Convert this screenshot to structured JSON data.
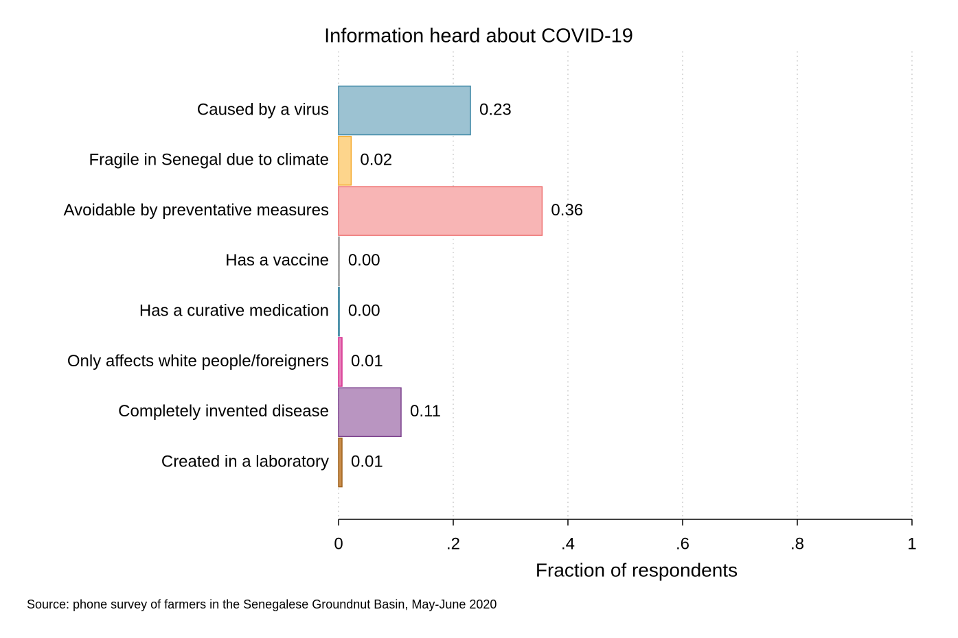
{
  "chart_data": {
    "type": "hbar",
    "title": "Information heard about COVID-19",
    "categories": [
      "Caused by a virus",
      "Fragile in Senegal due to climate",
      "Avoidable by preventative measures",
      "Has a vaccine",
      "Has a curative medication",
      "Only affects white people/foreigners",
      "Completely invented disease",
      "Created in a laboratory"
    ],
    "values": [
      0.23,
      0.022,
      0.355,
      0.001,
      0.001,
      0.006,
      0.109,
      0.006
    ],
    "value_labels": [
      "0.23",
      "0.02",
      "0.36",
      "0.00",
      "0.00",
      "0.01",
      "0.11",
      "0.01"
    ],
    "colors": [
      "#9cc2d2",
      "#fdd58c",
      "#f8b5b5",
      "#c8c8c8",
      "#8fc3d3",
      "#e77fb9",
      "#b995c1",
      "#c98d4a"
    ],
    "edge_colors": [
      "#3f88a6",
      "#f4a92a",
      "#ee7070",
      "#999999",
      "#2f7f9b",
      "#d6308f",
      "#7c418d",
      "#a0631f"
    ],
    "xlim": [
      0,
      1
    ],
    "xticks": [
      0,
      {
        "value": 0.2,
        "label": ".2"
      },
      {
        "value": 0.4,
        "label": ".4"
      },
      {
        "value": 0.6,
        "label": ".6"
      },
      {
        "value": 0.8,
        "label": ".8"
      },
      1
    ],
    "xlabel": "Fraction of respondents",
    "grid": true,
    "note": "Source: phone survey of farmers in the Senegalese Groundnut Basin, May-June 2020"
  }
}
